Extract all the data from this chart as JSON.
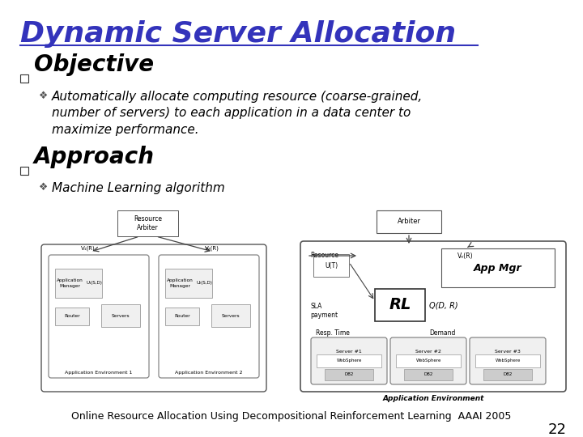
{
  "title": "Dynamic Server Allocation",
  "title_color": "#3333bb",
  "title_fontsize": 26,
  "bg_color": "#ffffff",
  "bullet1_header": "Objective",
  "bullet1_fontsize": 20,
  "bullet1_text": "Automatically allocate computing resource (coarse-grained,\nnumber of servers) to each application in a data center to\nmaximize performance.",
  "bullet1_text_fontsize": 11,
  "bullet2_header": "Approach",
  "bullet2_fontsize": 20,
  "bullet2_text": "Machine Learning algorithm",
  "bullet2_text_fontsize": 11,
  "footer_text": "Online Resource Allocation Using Decompositional Reinforcement Learning  AAAI 2005",
  "footer_fontsize": 9,
  "page_number": "22",
  "page_number_fontsize": 13,
  "square_bullet_color": "#333333",
  "diamond_bullet_color": "#333333"
}
